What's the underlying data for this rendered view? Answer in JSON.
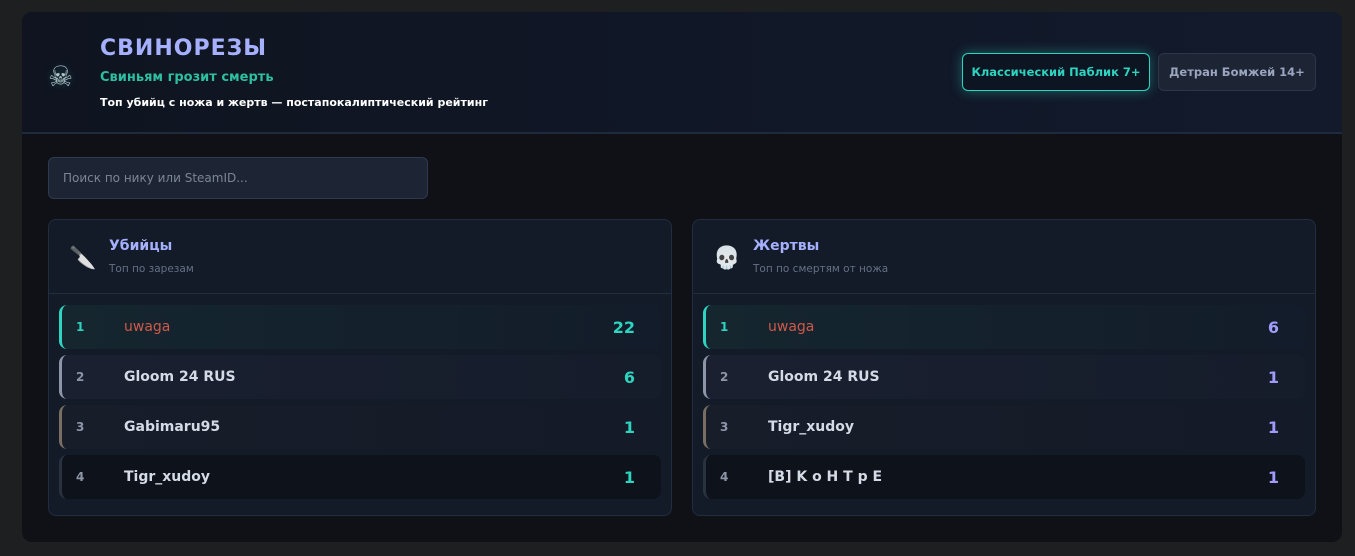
{
  "header": {
    "title": "СВИНОРЕЗЫ",
    "subtitle": "Свиньям грозит смерть",
    "description": "Топ убийц с ножа и жертв — постапокалиптический рейтинг",
    "logo_icon": "skull-crossbones-icon"
  },
  "servers": [
    {
      "label": "Классический Паблик 7+",
      "active": true
    },
    {
      "label": "Детран Бомжей 14+",
      "active": false
    }
  ],
  "search": {
    "placeholder": "Поиск по нику или SteamID...",
    "value": ""
  },
  "colors": {
    "accent": "#2dd4bf",
    "title": "#a5b0ff",
    "first_name": "#d0584a",
    "victim_score": "#a29bfe"
  },
  "killers": {
    "icon": "knife-icon",
    "title": "Убийцы",
    "subtitle": "Топ по зарезам",
    "rows": [
      {
        "rank": "1",
        "name": "uwaga",
        "score": "22"
      },
      {
        "rank": "2",
        "name": "Gloom 24 RUS",
        "score": "6"
      },
      {
        "rank": "3",
        "name": "Gabimaru95",
        "score": "1"
      },
      {
        "rank": "4",
        "name": "Tigr_xudoy",
        "score": "1"
      }
    ]
  },
  "victims": {
    "icon": "skull-icon",
    "title": "Жертвы",
    "subtitle": "Топ по смертям от ножа",
    "rows": [
      {
        "rank": "1",
        "name": "uwaga",
        "score": "6"
      },
      {
        "rank": "2",
        "name": "Gloom 24 RUS",
        "score": "1"
      },
      {
        "rank": "3",
        "name": "Tigr_xudoy",
        "score": "1"
      },
      {
        "rank": "4",
        "name": "[B] K o H T p E",
        "score": "1"
      }
    ]
  }
}
